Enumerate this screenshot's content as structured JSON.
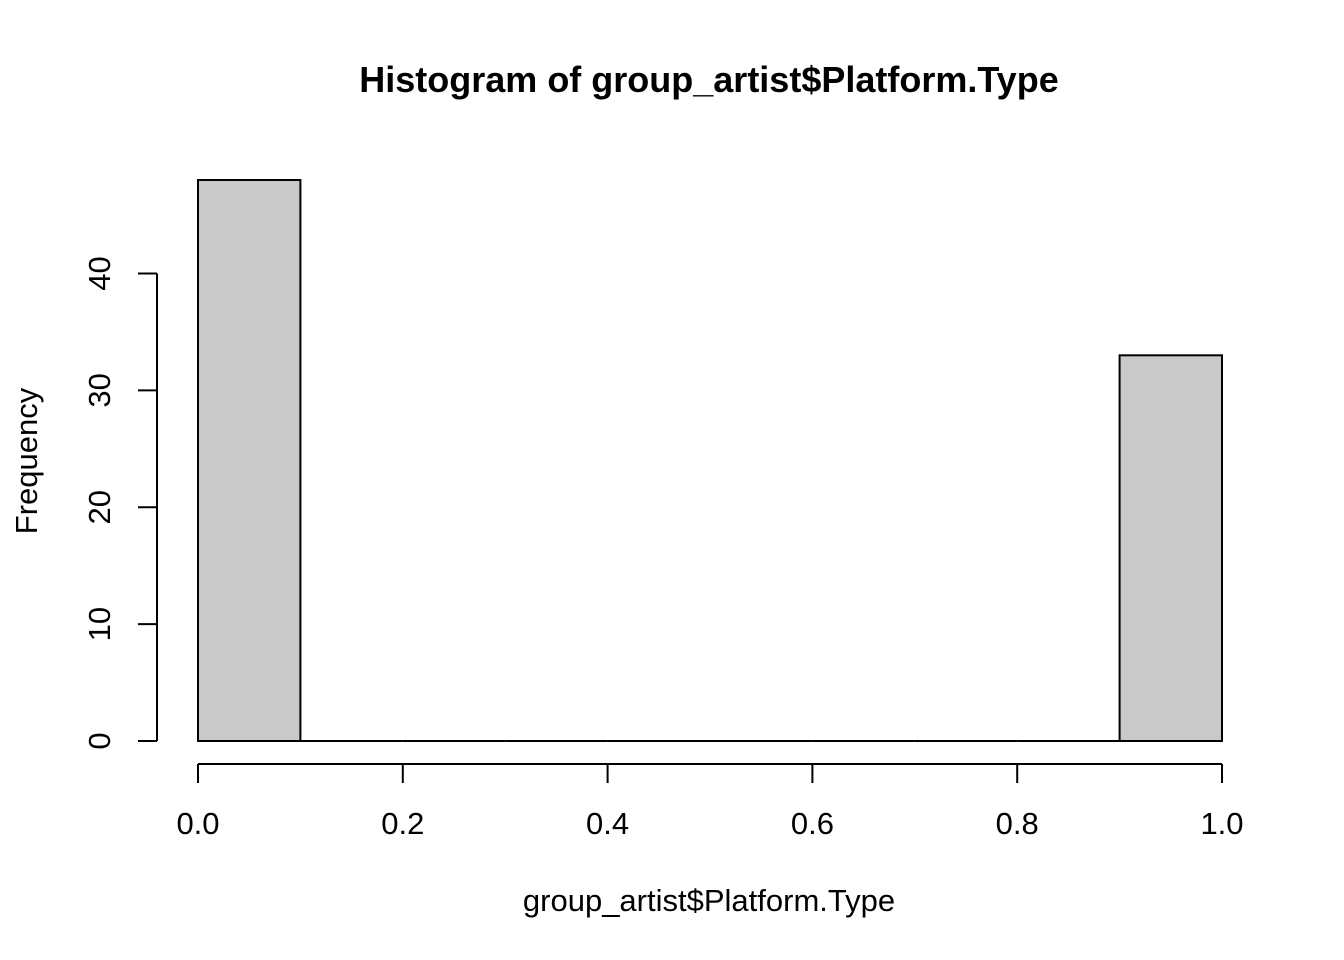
{
  "chart_data": {
    "type": "bar",
    "title": "Histogram of group_artist$Platform.Type",
    "xlabel": "group_artist$Platform.Type",
    "ylabel": "Frequency",
    "bins": [
      {
        "start": 0.0,
        "end": 0.1,
        "count": 48
      },
      {
        "start": 0.1,
        "end": 0.2,
        "count": 0
      },
      {
        "start": 0.2,
        "end": 0.3,
        "count": 0
      },
      {
        "start": 0.3,
        "end": 0.4,
        "count": 0
      },
      {
        "start": 0.4,
        "end": 0.5,
        "count": 0
      },
      {
        "start": 0.5,
        "end": 0.6,
        "count": 0
      },
      {
        "start": 0.6,
        "end": 0.7,
        "count": 0
      },
      {
        "start": 0.7,
        "end": 0.8,
        "count": 0
      },
      {
        "start": 0.8,
        "end": 0.9,
        "count": 0
      },
      {
        "start": 0.9,
        "end": 1.0,
        "count": 33
      }
    ],
    "x_ticks": [
      0.0,
      0.2,
      0.4,
      0.6,
      0.8,
      1.0
    ],
    "x_tick_labels": [
      "0.0",
      "0.2",
      "0.4",
      "0.6",
      "0.8",
      "1.0"
    ],
    "y_ticks": [
      0,
      10,
      20,
      30,
      40
    ],
    "y_tick_labels": [
      "0",
      "10",
      "20",
      "30",
      "40"
    ],
    "xlim": [
      0,
      1
    ],
    "ylim": [
      0,
      48
    ],
    "grid": false,
    "bar_color": "#c9c9c9"
  }
}
